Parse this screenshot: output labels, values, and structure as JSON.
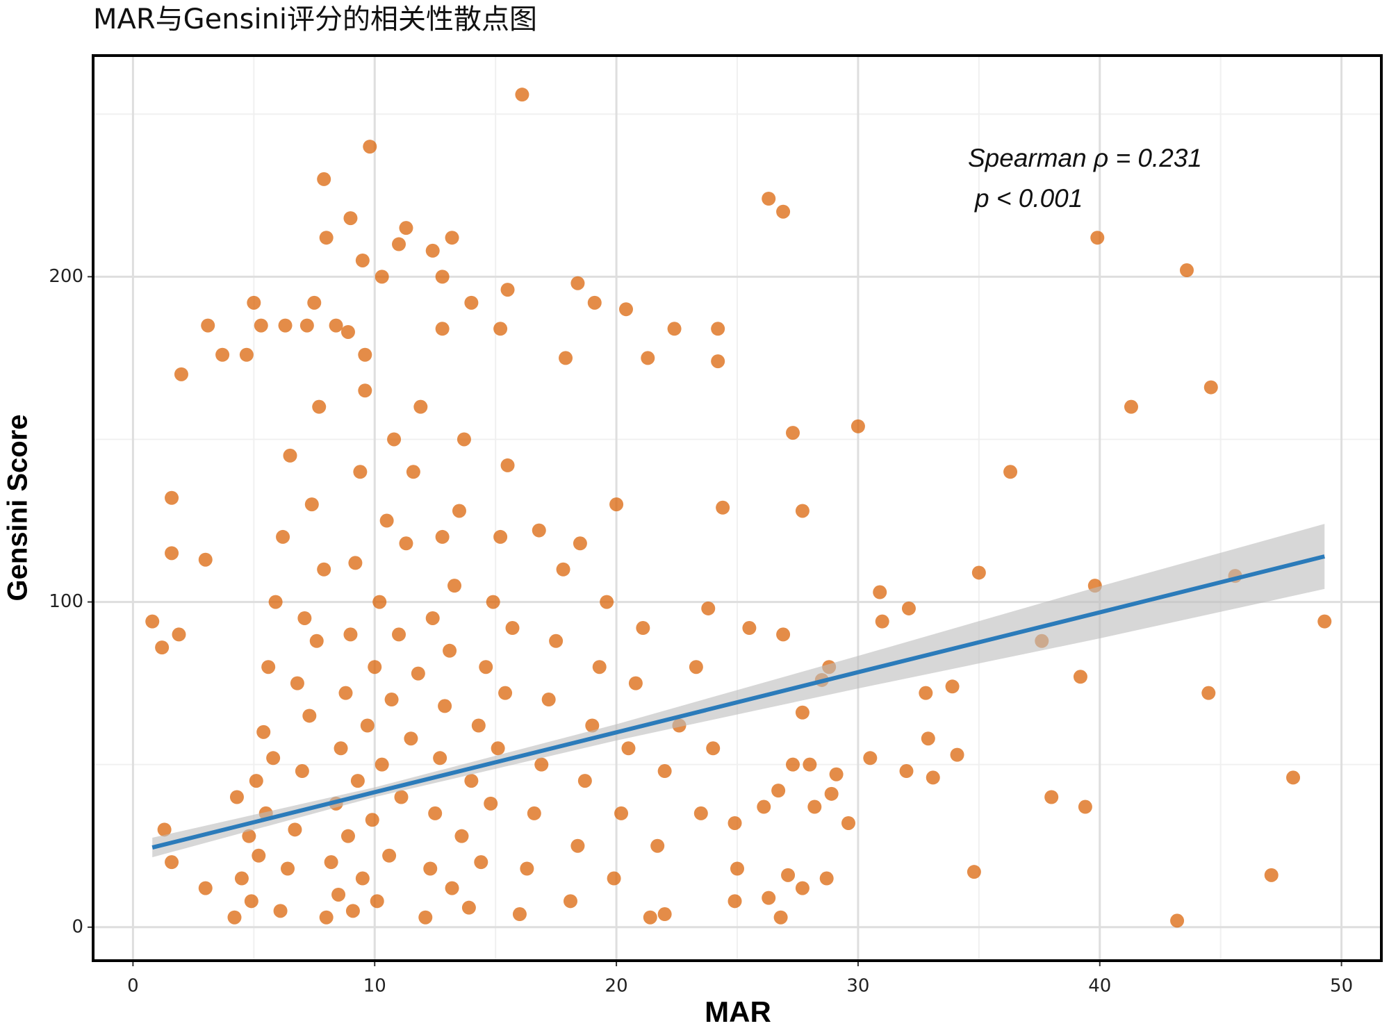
{
  "chart_data": {
    "type": "scatter",
    "title": "MAR与Gensini评分的相关性散点图",
    "x_label": "MAR",
    "y_label": "Gensini Score",
    "annotations": [
      "Spearman ρ = 0.231",
      "p < 0.001"
    ],
    "color": "#d95f02",
    "fit_color": "#2b7bba",
    "band_color": "#bdbdbd",
    "grid": true,
    "xlim": [
      -1.65,
      51.65
    ],
    "ylim": [
      -10.3,
      268
    ],
    "xticks": [
      0,
      10,
      20,
      30,
      40,
      50
    ],
    "yticks": [
      0,
      100,
      200
    ],
    "xminor": [
      5,
      15,
      25,
      35,
      45
    ],
    "yminor": [
      50,
      150,
      250
    ],
    "x": [
      16.1,
      9.8,
      7.9,
      26.3,
      26.9,
      39.9,
      43.6,
      11.3,
      13.2,
      9.0,
      8.0,
      12.4,
      9.5,
      11.0,
      10.3,
      12.8,
      15.5,
      18.4,
      19.1,
      20.4,
      14.0,
      7.5,
      5.0,
      3.1,
      5.3,
      6.3,
      7.2,
      8.4,
      8.9,
      12.8,
      15.2,
      22.4,
      24.2,
      24.2,
      21.3,
      17.9,
      2.0,
      3.7,
      4.7,
      9.6,
      44.6,
      41.3,
      30.0,
      27.3,
      36.3,
      1.6,
      27.7,
      24.4,
      1.6,
      3.0,
      35.0,
      45.6,
      39.8,
      30.9,
      32.1,
      31.0,
      49.3,
      0.8,
      1.9,
      1.2,
      26.9,
      37.6,
      28.8,
      28.5,
      39.2,
      33.9,
      32.8,
      44.5,
      27.7,
      32.9,
      34.1,
      30.5,
      27.3,
      28.0,
      32.0,
      33.1,
      48.0,
      29.1,
      26.7,
      28.9,
      38.0,
      39.4,
      28.2,
      26.1,
      29.6,
      24.9,
      1.3,
      34.8,
      47.1,
      28.7,
      27.1,
      27.7,
      26.3,
      24.9,
      43.2,
      26.8,
      22.0,
      1.6,
      3.0,
      4.2,
      4.5,
      4.8,
      5.1,
      5.4,
      5.6,
      5.9,
      6.2,
      6.5,
      4.3,
      4.9,
      5.2,
      5.5,
      5.8,
      6.1,
      6.4,
      6.7,
      7.0,
      7.3,
      7.6,
      7.9,
      6.8,
      7.1,
      7.4,
      7.7,
      8.0,
      8.2,
      8.4,
      8.6,
      8.8,
      9.0,
      9.2,
      9.4,
      9.6,
      8.5,
      8.9,
      9.3,
      9.7,
      10.0,
      10.2,
      10.5,
      10.8,
      9.1,
      9.5,
      9.9,
      10.3,
      10.7,
      11.0,
      11.3,
      11.6,
      11.9,
      10.1,
      10.6,
      11.1,
      11.5,
      11.8,
      12.1,
      12.3,
      12.5,
      12.7,
      12.9,
      13.1,
      13.3,
      13.5,
      13.7,
      12.4,
      12.8,
      13.2,
      13.6,
      14.0,
      14.3,
      14.6,
      14.9,
      15.2,
      15.5,
      13.9,
      14.4,
      14.8,
      15.1,
      15.4,
      15.7,
      16.0,
      16.3,
      16.6,
      16.9,
      17.2,
      17.5,
      17.8,
      18.1,
      18.4,
      18.7,
      19.0,
      19.3,
      19.6,
      19.9,
      20.2,
      20.5,
      20.8,
      21.1,
      21.4,
      21.7,
      22.0,
      22.6,
      23.3,
      23.8,
      23.5,
      25.0,
      25.5,
      24.0,
      16.8,
      18.5,
      20.0
    ],
    "values": [
      256,
      240,
      230,
      224,
      220,
      212,
      202,
      215,
      212,
      218,
      212,
      208,
      205,
      210,
      200,
      200,
      196,
      198,
      192,
      190,
      192,
      192,
      192,
      185,
      185,
      185,
      185,
      185,
      183,
      184,
      184,
      184,
      184,
      174,
      175,
      175,
      170,
      176,
      176,
      176,
      166,
      160,
      154,
      152,
      140,
      132,
      128,
      129,
      115,
      113,
      109,
      108,
      105,
      103,
      98,
      94,
      94,
      94,
      90,
      86,
      90,
      88,
      80,
      76,
      77,
      74,
      72,
      72,
      66,
      58,
      53,
      52,
      50,
      50,
      48,
      46,
      46,
      47,
      42,
      41,
      40,
      37,
      37,
      37,
      32,
      32,
      30,
      17,
      16,
      15,
      16,
      12,
      9,
      8,
      2,
      3,
      4,
      20,
      12,
      3,
      15,
      28,
      45,
      60,
      80,
      100,
      120,
      145,
      40,
      8,
      22,
      35,
      52,
      5,
      18,
      30,
      48,
      65,
      88,
      110,
      75,
      95,
      130,
      160,
      3,
      20,
      38,
      55,
      72,
      90,
      112,
      140,
      165,
      10,
      28,
      45,
      62,
      80,
      100,
      125,
      150,
      5,
      15,
      33,
      50,
      70,
      90,
      118,
      140,
      160,
      8,
      22,
      40,
      58,
      78,
      3,
      18,
      35,
      52,
      68,
      85,
      105,
      128,
      150,
      95,
      120,
      12,
      28,
      45,
      62,
      80,
      100,
      120,
      142,
      6,
      20,
      38,
      55,
      72,
      92,
      4,
      18,
      35,
      50,
      70,
      88,
      110,
      8,
      25,
      45,
      62,
      80,
      100,
      15,
      35,
      55,
      75,
      92,
      3,
      25,
      48,
      62,
      80,
      98,
      35,
      18,
      92,
      55,
      122,
      118,
      130
    ],
    "fit": {
      "x": [
        0.8,
        10,
        20,
        30,
        40,
        49.3
      ],
      "y": [
        24.5,
        41.5,
        59.9,
        78.4,
        96.8,
        114.0
      ],
      "lower": [
        21.5,
        40,
        57.4,
        73.4,
        88.8,
        104
      ],
      "upper": [
        27.5,
        43,
        62.4,
        83.4,
        104.8,
        124
      ]
    }
  }
}
